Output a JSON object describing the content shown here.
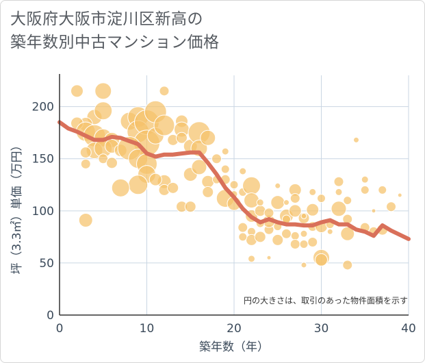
{
  "title_line1": "大阪府大阪市淀川区新高の",
  "title_line2": "築年数別中古マンション価格",
  "colors": {
    "bubble_fill": "#f5c26b",
    "bubble_stroke": "#ffffff",
    "trend_line": "#d9705a",
    "grid": "#c9d6e3",
    "axis": "#333333"
  },
  "chart_data": {
    "type": "scatter",
    "xlabel": "築年数（年）",
    "ylabel": "坪（3.3㎡）単価（万円）",
    "xlim": [
      0,
      40
    ],
    "ylim": [
      0,
      230
    ],
    "xticks": [
      0,
      10,
      20,
      30,
      40
    ],
    "yticks": [
      0,
      50,
      100,
      150,
      200
    ],
    "grid": true,
    "annotation": "円の大きさは、取引のあった物件面積を示す",
    "bubbles": [
      [
        2,
        215,
        9
      ],
      [
        4,
        190,
        11
      ],
      [
        5,
        215,
        12
      ],
      [
        5,
        196,
        13
      ],
      [
        3,
        183,
        10
      ],
      [
        2,
        184,
        9
      ],
      [
        3,
        176,
        14
      ],
      [
        4,
        172,
        16
      ],
      [
        5,
        170,
        13
      ],
      [
        6,
        168,
        11
      ],
      [
        4,
        158,
        12
      ],
      [
        5,
        160,
        13
      ],
      [
        6,
        162,
        10
      ],
      [
        3,
        156,
        8
      ],
      [
        7,
        158,
        9
      ],
      [
        5,
        150,
        7
      ],
      [
        6,
        146,
        8
      ],
      [
        3,
        145,
        7
      ],
      [
        8,
        186,
        13
      ],
      [
        9,
        190,
        15
      ],
      [
        9,
        176,
        16
      ],
      [
        10,
        185,
        18
      ],
      [
        10,
        165,
        19
      ],
      [
        8,
        160,
        17
      ],
      [
        9,
        150,
        14
      ],
      [
        10,
        145,
        15
      ],
      [
        10,
        135,
        13
      ],
      [
        9,
        125,
        14
      ],
      [
        7,
        122,
        13
      ],
      [
        11,
        195,
        16
      ],
      [
        11,
        172,
        12
      ],
      [
        12,
        182,
        15
      ],
      [
        12,
        215,
        7
      ],
      [
        12,
        128,
        10
      ],
      [
        12,
        120,
        8
      ],
      [
        11,
        130,
        9
      ],
      [
        13,
        168,
        8
      ],
      [
        14,
        186,
        9
      ],
      [
        14,
        178,
        11
      ],
      [
        14,
        170,
        8
      ],
      [
        15,
        162,
        10
      ],
      [
        16,
        175,
        16
      ],
      [
        16,
        160,
        12
      ],
      [
        17,
        170,
        11
      ],
      [
        15,
        135,
        10
      ],
      [
        16,
        142,
        11
      ],
      [
        17,
        128,
        9
      ],
      [
        17,
        118,
        8
      ],
      [
        13,
        122,
        8
      ],
      [
        14,
        104,
        8
      ],
      [
        15,
        104,
        8
      ],
      [
        3,
        91,
        10
      ],
      [
        18,
        150,
        7
      ],
      [
        19,
        157,
        5
      ],
      [
        19,
        140,
        6
      ],
      [
        19,
        130,
        7
      ],
      [
        20,
        125,
        6
      ],
      [
        19,
        112,
        13
      ],
      [
        20,
        107,
        10
      ],
      [
        21,
        138,
        5
      ],
      [
        21,
        118,
        6
      ],
      [
        22,
        124,
        13
      ],
      [
        22,
        110,
        11
      ],
      [
        22,
        95,
        9
      ],
      [
        23,
        100,
        8
      ],
      [
        21,
        84,
        7
      ],
      [
        22,
        80,
        6
      ],
      [
        22,
        72,
        8
      ],
      [
        21,
        75,
        6
      ],
      [
        23,
        75,
        8
      ],
      [
        24,
        82,
        7
      ],
      [
        24,
        90,
        9
      ],
      [
        25,
        108,
        10
      ],
      [
        25,
        85,
        6
      ],
      [
        25,
        72,
        8
      ],
      [
        24,
        98,
        7
      ],
      [
        23,
        88,
        6
      ],
      [
        26,
        95,
        10
      ],
      [
        26,
        78,
        7
      ],
      [
        27,
        120,
        9
      ],
      [
        27,
        112,
        7
      ],
      [
        27,
        100,
        9
      ],
      [
        28,
        93,
        8
      ],
      [
        27,
        76,
        6
      ],
      [
        27,
        68,
        7
      ],
      [
        28,
        78,
        5
      ],
      [
        28,
        68,
        6
      ],
      [
        29,
        118,
        5
      ],
      [
        29,
        101,
        9
      ],
      [
        29,
        85,
        7
      ],
      [
        29,
        70,
        7
      ],
      [
        30,
        112,
        6
      ],
      [
        30,
        85,
        9
      ],
      [
        30,
        55,
        12
      ],
      [
        30,
        53,
        9
      ],
      [
        31,
        87,
        6
      ],
      [
        32,
        128,
        7
      ],
      [
        32,
        118,
        5
      ],
      [
        32,
        102,
        11
      ],
      [
        33,
        110,
        6
      ],
      [
        33,
        92,
        7
      ],
      [
        33,
        78,
        10
      ],
      [
        33,
        48,
        7
      ],
      [
        34,
        168,
        4
      ],
      [
        35,
        130,
        5
      ],
      [
        35,
        120,
        6
      ],
      [
        35,
        84,
        7
      ],
      [
        36,
        80,
        7
      ],
      [
        37,
        120,
        6
      ],
      [
        37,
        82,
        8
      ],
      [
        38,
        104,
        7
      ],
      [
        39,
        115,
        3
      ],
      [
        24,
        55,
        3
      ],
      [
        28,
        48,
        4
      ],
      [
        22,
        54,
        5
      ],
      [
        26,
        92,
        6
      ],
      [
        31,
        80,
        4
      ],
      [
        25,
        124,
        4
      ],
      [
        36,
        100,
        3
      ],
      [
        18,
        130,
        6
      ],
      [
        20,
        116,
        5
      ],
      [
        23,
        108,
        5
      ],
      [
        26,
        108,
        4
      ],
      [
        28,
        95,
        4
      ]
    ],
    "trend": {
      "x": [
        0,
        1,
        2,
        3,
        4,
        5,
        6,
        7,
        8,
        9,
        10,
        11,
        12,
        13,
        14,
        15,
        16,
        17,
        18,
        19,
        20,
        21,
        22,
        23,
        24,
        25,
        26,
        27,
        28,
        29,
        30,
        31,
        32,
        33,
        34,
        35,
        36,
        37,
        38,
        39,
        40
      ],
      "y": [
        185,
        179,
        176,
        172,
        168,
        168,
        171,
        170,
        167,
        164,
        155,
        152,
        154,
        154,
        155,
        156,
        156,
        146,
        135,
        122,
        113,
        102,
        94,
        89,
        92,
        89,
        87,
        87,
        86,
        86,
        89,
        91,
        87,
        87,
        82,
        80,
        76,
        86,
        81,
        77,
        73
      ]
    }
  }
}
